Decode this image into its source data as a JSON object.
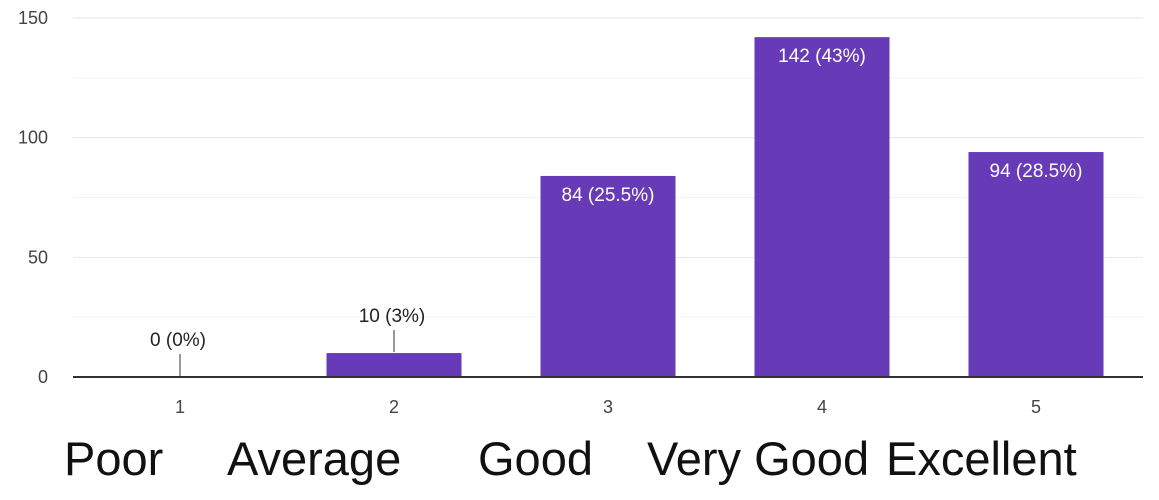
{
  "chart_data": {
    "type": "bar",
    "categories": [
      "1",
      "2",
      "3",
      "4",
      "5"
    ],
    "values": [
      0,
      10,
      84,
      142,
      94
    ],
    "data_labels": [
      "0 (0%)",
      "10 (3%)",
      "84 (25.5%)",
      "142 (43%)",
      "94 (28.5%)"
    ],
    "yticks": [
      "0",
      "50",
      "100",
      "150"
    ],
    "ylim": [
      0,
      150
    ],
    "grid": true,
    "bar_color": "#673ab7",
    "gridline_color": "#e6e6e6",
    "axis_color": "#333333"
  },
  "rating_names": [
    "Poor",
    "Average",
    "Good",
    "Very Good",
    "Excellent"
  ]
}
